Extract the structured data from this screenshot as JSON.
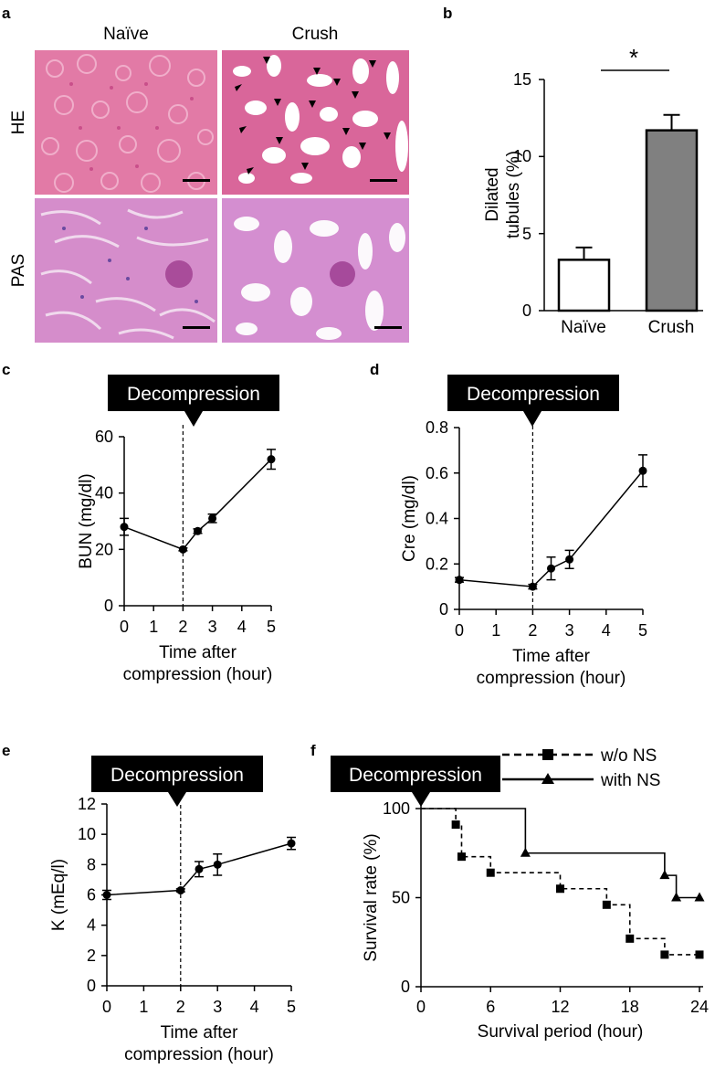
{
  "panel_letters": {
    "a": "a",
    "b": "b",
    "c": "c",
    "d": "d",
    "e": "e",
    "f": "f"
  },
  "micrograph": {
    "col_labels": [
      "Naïve",
      "Crush"
    ],
    "row_labels": [
      "HE",
      "PAS"
    ]
  },
  "decompression_label": "Decompression",
  "colors": {
    "he_pink": "#e06aa0",
    "pas_purple": "#c56fc0",
    "lumen": "#ffffff",
    "bar_crush": "#808080",
    "bar_naive": "#ffffff"
  },
  "chart_data": [
    {
      "id": "b",
      "type": "bar",
      "categories": [
        "Naïve",
        "Crush"
      ],
      "values": [
        3.3,
        11.7
      ],
      "errors": [
        0.8,
        1.0
      ],
      "ylabel": "Dilated tubules (%)",
      "ylabel_lines": [
        "Dilated",
        "tubules (%)"
      ],
      "ylim": [
        0,
        15
      ],
      "yticks": [
        0,
        5,
        10,
        15
      ],
      "significance": "*"
    },
    {
      "id": "c",
      "type": "line",
      "x": [
        0,
        2,
        2.5,
        3,
        5
      ],
      "y": [
        28,
        20,
        26.5,
        31,
        52
      ],
      "errors": [
        3,
        0.5,
        0.8,
        1.5,
        3.5
      ],
      "xlabel_lines": [
        "Time after",
        "compression (hour)"
      ],
      "ylabel": "BUN (mg/dl)",
      "xlim": [
        0,
        5
      ],
      "ylim": [
        0,
        60
      ],
      "xticks": [
        0,
        1,
        2,
        3,
        4,
        5
      ],
      "yticks": [
        0,
        20,
        40,
        60
      ],
      "vline_x": 2
    },
    {
      "id": "d",
      "type": "line",
      "x": [
        0,
        2,
        2.5,
        3,
        5
      ],
      "y": [
        0.13,
        0.1,
        0.18,
        0.22,
        0.61
      ],
      "errors": [
        0.01,
        0.01,
        0.05,
        0.04,
        0.07
      ],
      "xlabel_lines": [
        "Time after",
        "compression (hour)"
      ],
      "ylabel": "Cre (mg/dl)",
      "xlim": [
        0,
        5
      ],
      "ylim": [
        0,
        0.8
      ],
      "xticks": [
        0,
        1,
        2,
        3,
        4,
        5
      ],
      "yticks": [
        "0",
        "0.2",
        "0.4",
        "0.6",
        "0.8"
      ],
      "vline_x": 2
    },
    {
      "id": "e",
      "type": "line",
      "x": [
        0,
        2,
        2.5,
        3,
        5
      ],
      "y": [
        6.0,
        6.3,
        7.7,
        8.0,
        9.4
      ],
      "errors": [
        0.3,
        0.1,
        0.5,
        0.7,
        0.4
      ],
      "xlabel_lines": [
        "Time after",
        "compression (hour)"
      ],
      "ylabel": "K (mEq/l)",
      "xlim": [
        0,
        5
      ],
      "ylim": [
        0,
        12
      ],
      "xticks": [
        0,
        1,
        2,
        3,
        4,
        5
      ],
      "yticks": [
        0,
        2,
        4,
        6,
        8,
        10,
        12
      ],
      "vline_x": 2
    },
    {
      "id": "f",
      "type": "line",
      "xlabel": "Survival period (hour)",
      "ylabel": "Survival rate (%)",
      "xlim": [
        0,
        24
      ],
      "ylim": [
        0,
        100
      ],
      "xticks": [
        0,
        6,
        12,
        18,
        24
      ],
      "yticks": [
        0,
        50,
        100
      ],
      "legend_position": "top-right",
      "series": [
        {
          "name": "w/o NS",
          "style": "dashed",
          "marker": "square",
          "steps": [
            [
              0,
              100
            ],
            [
              3,
              91
            ],
            [
              3.5,
              73
            ],
            [
              6,
              64
            ],
            [
              12,
              55
            ],
            [
              16,
              46
            ],
            [
              18,
              27
            ],
            [
              21,
              18
            ],
            [
              24,
              18
            ]
          ]
        },
        {
          "name": "with NS",
          "style": "solid",
          "marker": "triangle",
          "steps": [
            [
              0,
              100
            ],
            [
              9,
              75
            ],
            [
              21,
              62.5
            ],
            [
              22,
              50
            ],
            [
              24,
              50
            ]
          ]
        }
      ]
    }
  ]
}
